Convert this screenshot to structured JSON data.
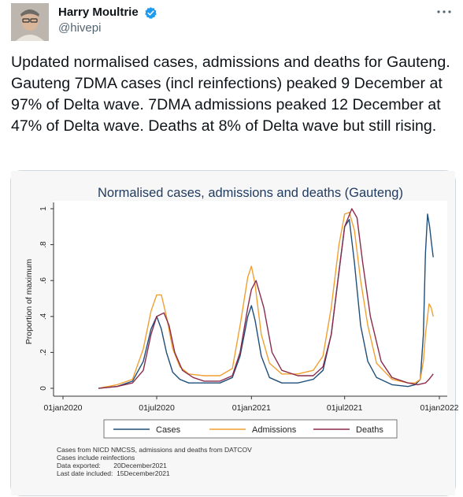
{
  "tweet": {
    "author_name": "Harry Moultrie",
    "handle": "@hivepi",
    "text": "Updated normalised cases, admissions and deaths for Gauteng. Gauteng 7DMA cases (incl reinfections) peaked 9 December at 97% of Delta wave. 7DMA admissions peaked 12 December at 47% of Delta wave. Deaths at 8% of Delta wave but still rising."
  },
  "icons": {
    "verified": "verified-badge-icon",
    "more": "more-options-icon"
  },
  "colors": {
    "verified": "#1d9bf0",
    "cases": "#1f4e79",
    "admissions": "#f0a030",
    "deaths": "#8b2c4c",
    "title": "#1f3a5f"
  },
  "chart_data": {
    "type": "line",
    "title": "Normalised cases, admissions and deaths (Gauteng)",
    "ylabel": "Proportion of maximum",
    "xlabel": "",
    "x_ticks": [
      "01jan2020",
      "01jul2020",
      "01jan2021",
      "01jul2021",
      "01jan2022"
    ],
    "y_ticks": [
      "0",
      ".2",
      ".4",
      ".6",
      ".8",
      "1"
    ],
    "ylim": [
      0,
      1
    ],
    "xlim": [
      "2020-01-01",
      "2022-01-01"
    ],
    "grid": false,
    "legend_position": "bottom",
    "series": [
      {
        "name": "Cases",
        "x": [
          "2020-03-10",
          "2020-04-15",
          "2020-05-15",
          "2020-06-05",
          "2020-06-20",
          "2020-07-01",
          "2020-07-10",
          "2020-07-20",
          "2020-08-01",
          "2020-08-15",
          "2020-09-01",
          "2020-10-01",
          "2020-11-01",
          "2020-11-25",
          "2020-12-10",
          "2020-12-25",
          "2021-01-01",
          "2021-01-08",
          "2021-01-20",
          "2021-02-05",
          "2021-03-01",
          "2021-04-01",
          "2021-05-01",
          "2021-05-20",
          "2021-06-05",
          "2021-06-20",
          "2021-07-01",
          "2021-07-10",
          "2021-07-20",
          "2021-08-01",
          "2021-08-15",
          "2021-09-01",
          "2021-10-01",
          "2021-11-01",
          "2021-11-15",
          "2021-11-25",
          "2021-12-01",
          "2021-12-05",
          "2021-12-09",
          "2021-12-13",
          "2021-12-17",
          "2021-12-20"
        ],
        "values": [
          0.0,
          0.01,
          0.04,
          0.15,
          0.33,
          0.4,
          0.33,
          0.2,
          0.09,
          0.05,
          0.03,
          0.03,
          0.03,
          0.06,
          0.18,
          0.4,
          0.46,
          0.38,
          0.18,
          0.06,
          0.03,
          0.03,
          0.05,
          0.1,
          0.3,
          0.65,
          0.9,
          0.94,
          0.7,
          0.35,
          0.15,
          0.06,
          0.02,
          0.01,
          0.02,
          0.05,
          0.3,
          0.75,
          0.97,
          0.9,
          0.8,
          0.73
        ]
      },
      {
        "name": "Admissions",
        "x": [
          "2020-03-10",
          "2020-04-15",
          "2020-05-15",
          "2020-06-05",
          "2020-06-20",
          "2020-07-01",
          "2020-07-10",
          "2020-07-20",
          "2020-08-01",
          "2020-08-15",
          "2020-09-01",
          "2020-10-01",
          "2020-11-01",
          "2020-11-25",
          "2020-12-10",
          "2020-12-25",
          "2021-01-01",
          "2021-01-08",
          "2021-01-20",
          "2021-02-05",
          "2021-03-01",
          "2021-04-01",
          "2021-05-01",
          "2021-05-20",
          "2021-06-05",
          "2021-06-20",
          "2021-07-01",
          "2021-07-10",
          "2021-07-20",
          "2021-08-01",
          "2021-08-15",
          "2021-09-01",
          "2021-10-01",
          "2021-11-01",
          "2021-11-15",
          "2021-11-25",
          "2021-12-01",
          "2021-12-05",
          "2021-12-09",
          "2021-12-12",
          "2021-12-16",
          "2021-12-20"
        ],
        "values": [
          0.0,
          0.02,
          0.05,
          0.22,
          0.43,
          0.52,
          0.52,
          0.4,
          0.22,
          0.12,
          0.08,
          0.07,
          0.07,
          0.11,
          0.35,
          0.62,
          0.68,
          0.58,
          0.3,
          0.14,
          0.08,
          0.08,
          0.1,
          0.18,
          0.45,
          0.8,
          0.97,
          0.98,
          0.88,
          0.6,
          0.35,
          0.14,
          0.05,
          0.03,
          0.03,
          0.05,
          0.15,
          0.3,
          0.4,
          0.47,
          0.45,
          0.4
        ]
      },
      {
        "name": "Deaths",
        "x": [
          "2020-03-10",
          "2020-04-15",
          "2020-05-15",
          "2020-06-05",
          "2020-06-20",
          "2020-07-01",
          "2020-07-15",
          "2020-07-25",
          "2020-08-05",
          "2020-08-20",
          "2020-09-10",
          "2020-10-01",
          "2020-11-01",
          "2020-11-25",
          "2020-12-10",
          "2020-12-25",
          "2021-01-01",
          "2021-01-10",
          "2021-01-25",
          "2021-02-10",
          "2021-03-01",
          "2021-04-01",
          "2021-05-01",
          "2021-05-20",
          "2021-06-05",
          "2021-06-20",
          "2021-07-01",
          "2021-07-15",
          "2021-07-25",
          "2021-08-05",
          "2021-08-20",
          "2021-09-10",
          "2021-10-01",
          "2021-11-01",
          "2021-11-20",
          "2021-12-05",
          "2021-12-12",
          "2021-12-20"
        ],
        "values": [
          0.0,
          0.01,
          0.03,
          0.1,
          0.3,
          0.4,
          0.42,
          0.35,
          0.2,
          0.1,
          0.06,
          0.04,
          0.04,
          0.07,
          0.2,
          0.45,
          0.55,
          0.6,
          0.45,
          0.2,
          0.1,
          0.07,
          0.07,
          0.12,
          0.3,
          0.65,
          0.9,
          1.0,
          0.95,
          0.7,
          0.4,
          0.15,
          0.06,
          0.03,
          0.02,
          0.03,
          0.05,
          0.08
        ]
      }
    ],
    "notes": [
      "Cases from NICD NMCSS, admissions and deaths from DATCOV",
      "Cases include reinfections",
      "Data exported:       20December2021",
      "Last date included:  15December2021"
    ]
  }
}
